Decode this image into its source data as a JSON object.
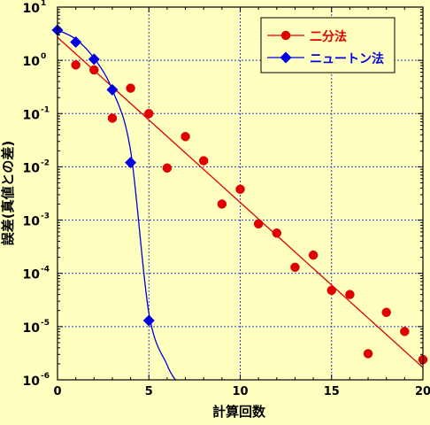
{
  "colors": {
    "background": "#ffffc0",
    "grid": "#2a3ecf",
    "axis": "#000000",
    "bisection": "#e00000",
    "newton": "#0000e0"
  },
  "chart_data": {
    "type": "scatter",
    "xlabel": "計算回数",
    "ylabel": "誤差(真値との差)",
    "x_scale": "linear",
    "y_scale": "log",
    "xlim": [
      0,
      20
    ],
    "ylim": [
      1e-06,
      10
    ],
    "xticks": [
      0,
      5,
      10,
      15,
      20
    ],
    "xtick_labels": [
      "0",
      "5",
      "10",
      "15",
      "20"
    ],
    "yticks": [
      1e-06,
      1e-05,
      0.0001,
      0.001,
      0.01,
      0.1,
      1,
      10
    ],
    "ytick_labels": [
      {
        "base": "10",
        "exp": "-6"
      },
      {
        "base": "10",
        "exp": "-5"
      },
      {
        "base": "10",
        "exp": "-4"
      },
      {
        "base": "10",
        "exp": "-3"
      },
      {
        "base": "10",
        "exp": "-2"
      },
      {
        "base": "10",
        "exp": "-1"
      },
      {
        "base": "10",
        "exp": "0"
      },
      {
        "base": "10",
        "exp": "1"
      }
    ],
    "grid": true,
    "legend_position": "top-right",
    "series": [
      {
        "name": "二分法",
        "marker": "circle",
        "color": "#e00000",
        "x": [
          1,
          2,
          3,
          4,
          5,
          6,
          7,
          8,
          9,
          10,
          11,
          12,
          13,
          14,
          15,
          16,
          17,
          18,
          19,
          20
        ],
        "y": [
          0.82,
          0.66,
          0.082,
          0.3,
          0.1,
          0.0095,
          0.037,
          0.013,
          0.002,
          0.0038,
          0.00085,
          0.00057,
          0.00013,
          0.00022,
          4.8e-05,
          4e-05,
          3.1e-06,
          1.85e-05,
          8.1e-06,
          2.4e-06
        ],
        "fit": {
          "type": "exponential",
          "x": [
            0,
            20
          ],
          "y": [
            2.7,
            1.7e-06
          ]
        }
      },
      {
        "name": "ニュートン法",
        "marker": "diamond",
        "color": "#0000e0",
        "x": [
          0,
          1,
          2,
          3,
          4,
          5
        ],
        "y": [
          3.7,
          2.2,
          1.05,
          0.28,
          0.012,
          1.3e-05
        ],
        "fit": {
          "type": "polynomial",
          "x": [
            0,
            1,
            2,
            3,
            4,
            5,
            6,
            6.5
          ],
          "y": [
            3.7,
            2.5,
            1.1,
            0.28,
            0.02,
            1.8e-05,
            1.9e-06,
            9.5e-07
          ]
        }
      }
    ]
  }
}
